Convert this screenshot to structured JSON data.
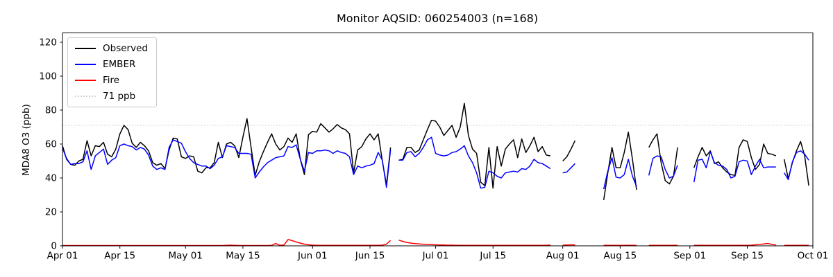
{
  "chart_data": {
    "type": "line",
    "title": "Monitor AQSID: 060254003 (n=168)",
    "xlabel": "",
    "ylabel": "MDA8 O3 (ppb)",
    "ylim": [
      0,
      125.5
    ],
    "yticks": [
      0,
      20,
      40,
      60,
      80,
      100,
      120
    ],
    "grid": false,
    "legend_position": "upper left",
    "x_unit": "daily values, day index 0 = Apr 01",
    "x_count": 183,
    "xticks": [
      {
        "label": "Apr 01",
        "day": 0
      },
      {
        "label": "Apr 15",
        "day": 14
      },
      {
        "label": "May 01",
        "day": 30
      },
      {
        "label": "May 15",
        "day": 44
      },
      {
        "label": "Jun 01",
        "day": 61
      },
      {
        "label": "Jun 15",
        "day": 75
      },
      {
        "label": "Jul 01",
        "day": 91
      },
      {
        "label": "Jul 15",
        "day": 105
      },
      {
        "label": "Aug 01",
        "day": 122
      },
      {
        "label": "Aug 15",
        "day": 136
      },
      {
        "label": "Sep 01",
        "day": 153
      },
      {
        "label": "Sep 15",
        "day": 167
      },
      {
        "label": "Oct 01",
        "day": 183
      }
    ],
    "reference_line": {
      "label": "71 ppb",
      "value": 71,
      "color": "#d3d3d3",
      "style": "dotted"
    },
    "series": [
      {
        "name": "Observed",
        "color": "#000000",
        "values": [
          59,
          51,
          48,
          47.5,
          50,
          51,
          62,
          53,
          59,
          58.5,
          61,
          54,
          52.5,
          57,
          66,
          71,
          68.5,
          60.5,
          58,
          61,
          59,
          56,
          49,
          47.5,
          48.5,
          45.5,
          56.5,
          63.5,
          63,
          52.5,
          51.5,
          53,
          52.5,
          44,
          43,
          46,
          46,
          49,
          61,
          52,
          60,
          61,
          59,
          52,
          64,
          75,
          58,
          41.5,
          49.5,
          55.5,
          61,
          66,
          60,
          56.5,
          58.5,
          63.5,
          61,
          66,
          51,
          42,
          65.5,
          67.5,
          67,
          72,
          69.5,
          67,
          69,
          71.5,
          69.5,
          68.5,
          66,
          43,
          56.5,
          58.5,
          63,
          66,
          62.5,
          66,
          50,
          36,
          58,
          null,
          50.5,
          51,
          58,
          58,
          55,
          56.5,
          62.5,
          68.5,
          74,
          73.5,
          70,
          65,
          68,
          71,
          64,
          70,
          84,
          65,
          57,
          54.5,
          37.5,
          35.5,
          58,
          34,
          58.5,
          47,
          57,
          60,
          62.5,
          52,
          63,
          55,
          59,
          64,
          55.5,
          58.5,
          53.5,
          53,
          null,
          null,
          50,
          52.5,
          57,
          62,
          null,
          null,
          null,
          null,
          null,
          null,
          27,
          43,
          58,
          46,
          46,
          55,
          67,
          51,
          33,
          null,
          null,
          58,
          62.5,
          66,
          49,
          38.5,
          36.5,
          41,
          58,
          null,
          null,
          null,
          46,
          52.5,
          58,
          53,
          56,
          48.5,
          49.5,
          46,
          43.5,
          42,
          41.5,
          58,
          62.5,
          61.5,
          52,
          45,
          48,
          60,
          54.5,
          54,
          53,
          null,
          51,
          39.5,
          49,
          56,
          61.5,
          53,
          35.5
        ]
      },
      {
        "name": "EMBER",
        "color": "#0000ff",
        "values": [
          57.5,
          51.5,
          48,
          48.5,
          48.5,
          49.5,
          56,
          45,
          53,
          55,
          57,
          48,
          50.5,
          52,
          59,
          60,
          59,
          58.5,
          56.5,
          58,
          57,
          53.5,
          47,
          45,
          46,
          45,
          58,
          62.5,
          61.5,
          60.5,
          55.5,
          51.5,
          49,
          48,
          47,
          47,
          45.5,
          47.5,
          51.5,
          52.5,
          59,
          58.5,
          58,
          54.5,
          54.5,
          54.5,
          54,
          40,
          43.5,
          46.5,
          49,
          50.5,
          52,
          52.5,
          53,
          58.5,
          58,
          59.5,
          51,
          44,
          55,
          54.5,
          56,
          56,
          56.5,
          56,
          54.5,
          56,
          55,
          54.5,
          52.5,
          42,
          47,
          46,
          47,
          47.5,
          48.5,
          55,
          50.5,
          34.5,
          56.5,
          null,
          50.5,
          50.5,
          55,
          55.5,
          52.5,
          54.5,
          58,
          62.5,
          64,
          54.5,
          53.5,
          53,
          53.5,
          55,
          55.5,
          57,
          59,
          53,
          49,
          43,
          34,
          34.5,
          44,
          43,
          41,
          40,
          43,
          43.5,
          44,
          43.5,
          45.5,
          45,
          47,
          51,
          49,
          48.5,
          47,
          45.5,
          null,
          null,
          43,
          43.5,
          46,
          48.5,
          null,
          null,
          null,
          null,
          null,
          null,
          33.5,
          44,
          52,
          40.5,
          40,
          42,
          51,
          41,
          35,
          null,
          null,
          41.5,
          51.5,
          53,
          52.5,
          45,
          40,
          41,
          47.5,
          null,
          null,
          null,
          37.5,
          50.5,
          51,
          46,
          55.5,
          49,
          47.5,
          47,
          45,
          40,
          41,
          49.5,
          50.5,
          50,
          42,
          47,
          51,
          46,
          46.5,
          46.5,
          46.5,
          null,
          43,
          39,
          49.5,
          55,
          56,
          54,
          50.5
        ]
      },
      {
        "name": "Fire",
        "color": "#ff0000",
        "values": [
          0.2,
          0.2,
          0.2,
          0.2,
          0.2,
          0.2,
          0.2,
          0.2,
          0.2,
          0.2,
          0.2,
          0.2,
          0.2,
          0.2,
          0.2,
          0.2,
          0.2,
          0.2,
          0.2,
          0.2,
          0.2,
          0.2,
          0.2,
          0.2,
          0.2,
          0.2,
          0.2,
          0.2,
          0.2,
          0.2,
          0.2,
          0.2,
          0.2,
          0.2,
          0.2,
          0.2,
          0.2,
          0.2,
          0.2,
          0.2,
          0.3,
          0.4,
          0.3,
          0.2,
          0.2,
          0.2,
          0.2,
          0.2,
          0.2,
          0.2,
          0.2,
          0.3,
          1.4,
          0.3,
          0.5,
          3.7,
          3.1,
          2.3,
          1.6,
          1.0,
          0.6,
          0.4,
          0.3,
          0.3,
          0.3,
          0.3,
          0.3,
          0.3,
          0.3,
          0.3,
          0.3,
          0.3,
          0.3,
          0.3,
          0.3,
          0.3,
          0.3,
          0.3,
          0.4,
          1.0,
          3.2,
          null,
          3.4,
          2.6,
          2.0,
          1.6,
          1.3,
          1.1,
          0.9,
          0.8,
          0.7,
          0.6,
          0.5,
          0.5,
          0.4,
          0.4,
          0.3,
          0.3,
          0.3,
          0.3,
          0.3,
          0.3,
          0.3,
          0.3,
          0.3,
          0.3,
          0.3,
          0.3,
          0.3,
          0.3,
          0.3,
          0.3,
          0.3,
          0.3,
          0.3,
          0.3,
          0.3,
          0.3,
          0.3,
          0.5,
          null,
          null,
          0.4,
          0.5,
          0.6,
          0.5,
          null,
          null,
          null,
          null,
          null,
          null,
          0.3,
          0.3,
          0.3,
          0.3,
          0.3,
          0.3,
          0.3,
          0.3,
          0.3,
          null,
          null,
          0.3,
          0.3,
          0.3,
          0.3,
          0.3,
          0.3,
          0.3,
          0.3,
          null,
          null,
          null,
          0.3,
          0.3,
          0.3,
          0.3,
          0.3,
          0.3,
          0.3,
          0.3,
          0.3,
          0.3,
          0.3,
          0.3,
          0.3,
          0.3,
          0.4,
          0.6,
          0.8,
          1.1,
          1.4,
          0.8,
          0.5,
          null,
          0.3,
          0.3,
          0.3,
          0.3,
          0.3,
          0.3,
          0.3
        ]
      }
    ]
  }
}
